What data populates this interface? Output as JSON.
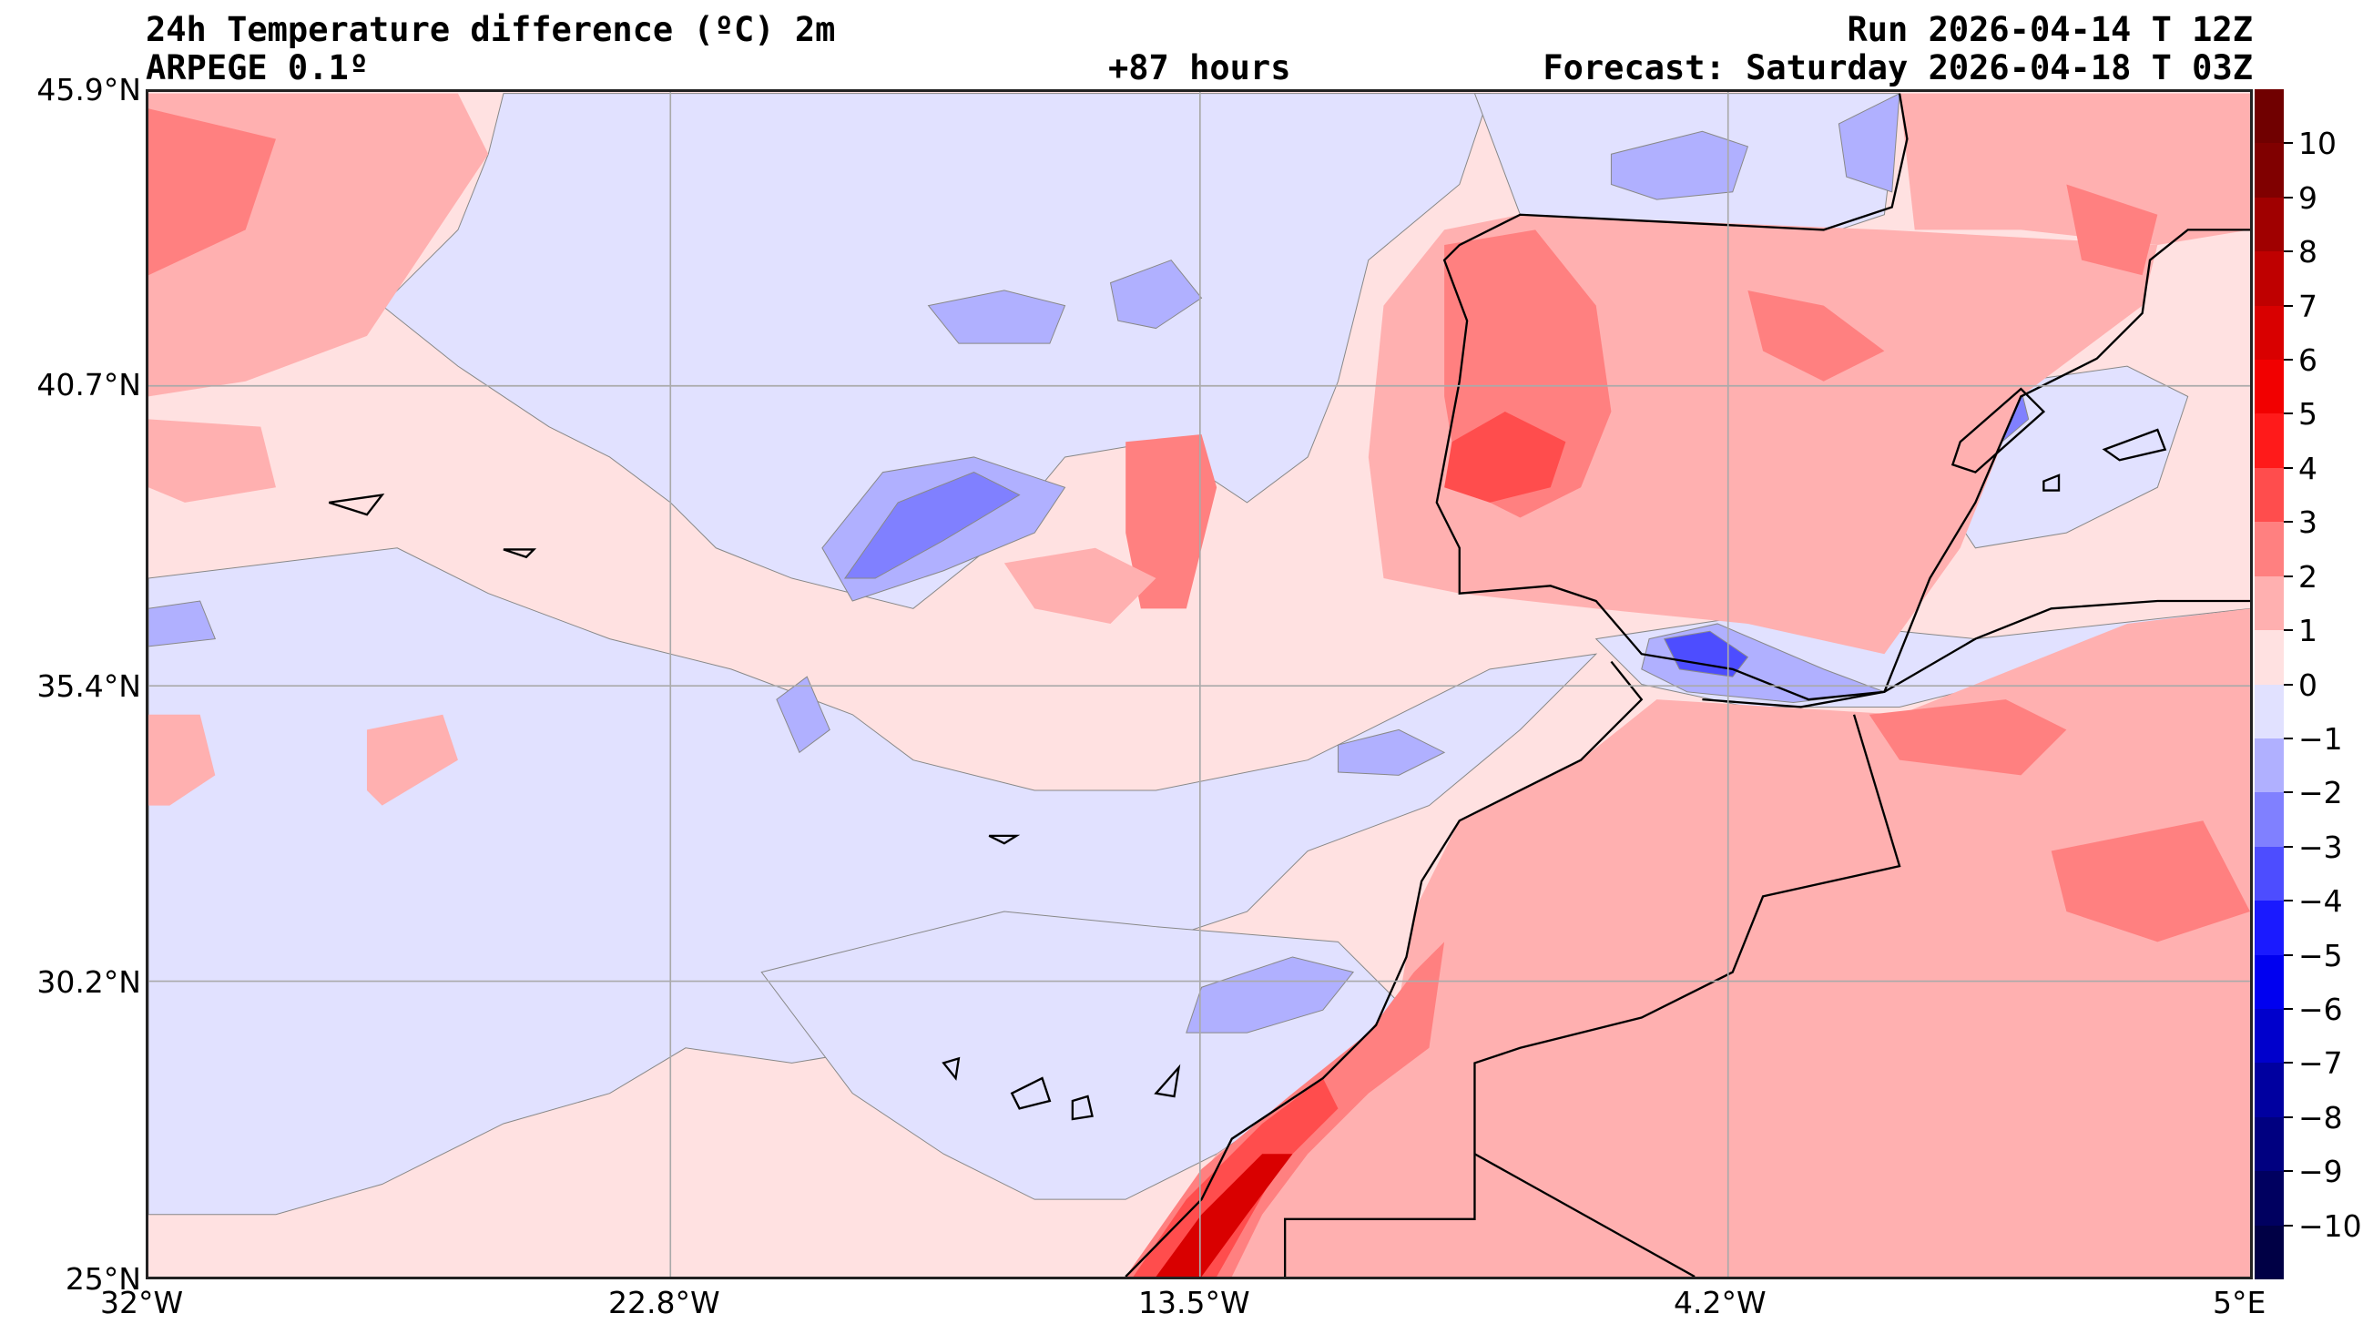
{
  "header": {
    "title": "24h Temperature difference (ºC) 2m",
    "model": "ARPEGE 0.1º",
    "lead_time": "+87 hours",
    "run": "Run 2026-04-14 T 12Z",
    "forecast": "Forecast: Saturday 2026-04-18 T 03Z"
  },
  "axes": {
    "lat_labels": [
      "45.9°N",
      "40.7°N",
      "35.4°N",
      "30.2°N",
      "25°N"
    ],
    "lon_labels": [
      "32°W",
      "22.8°W",
      "13.5°W",
      "4.2°W",
      "5°E"
    ]
  },
  "colorbar": {
    "tick_labels": [
      "10",
      "9",
      "8",
      "7",
      "6",
      "5",
      "4",
      "3",
      "2",
      "1",
      "0",
      "−1",
      "−2",
      "−3",
      "−4",
      "−5",
      "−6",
      "−7",
      "−8",
      "−9",
      "−10"
    ],
    "colors": [
      "#700000",
      "#800000",
      "#a00000",
      "#bf0000",
      "#d90000",
      "#f20000",
      "#ff1a1a",
      "#ff4d4d",
      "#ff8080",
      "#ffb0b0",
      "#ffe1e1",
      "#e1e1ff",
      "#b0b0ff",
      "#8080ff",
      "#4d4dff",
      "#1a1aff",
      "#0000f0",
      "#0000cc",
      "#0000a0",
      "#000080",
      "#000060",
      "#000045"
    ]
  }
}
